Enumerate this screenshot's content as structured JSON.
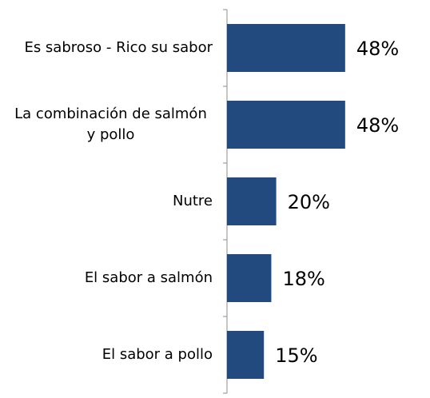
{
  "chart_data": {
    "type": "bar",
    "orientation": "horizontal",
    "categories": [
      "Es sabroso - Rico su sabor",
      "La combinación de salmón y pollo",
      "Nutre",
      "El sabor a salmón",
      "El sabor a pollo"
    ],
    "values": [
      48,
      48,
      20,
      18,
      15
    ],
    "value_labels": [
      "48%",
      "48%",
      "20%",
      "18%",
      "15%"
    ],
    "color": "#234a7e"
  }
}
